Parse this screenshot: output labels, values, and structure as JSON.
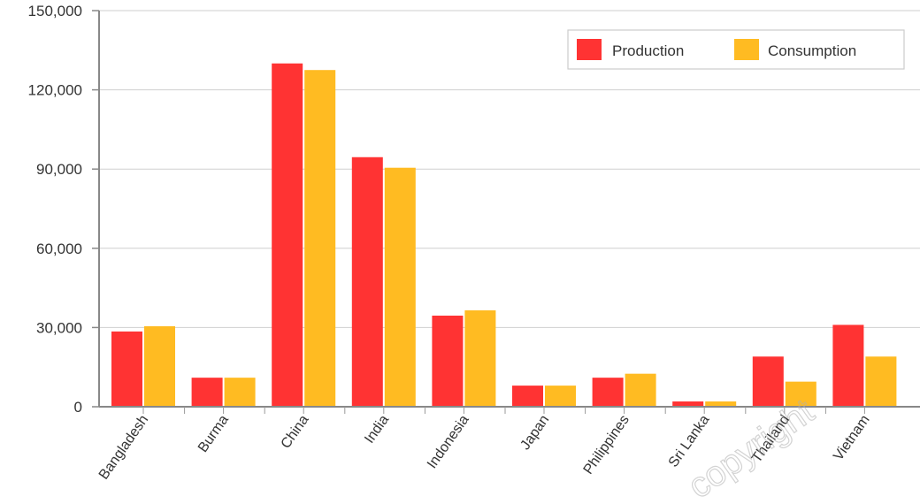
{
  "chart_data": {
    "type": "bar",
    "categories": [
      "Bangladesh",
      "Burma",
      "China",
      "India",
      "Indonesia",
      "Japan",
      "Philippines",
      "Sri Lanka",
      "Thailand",
      "Vietnam"
    ],
    "series": [
      {
        "name": "Production",
        "color": "#ff3333",
        "values": [
          28500,
          11000,
          130000,
          94500,
          34500,
          8000,
          11000,
          2000,
          19000,
          31000
        ]
      },
      {
        "name": "Consumption",
        "color": "#ffbb22",
        "values": [
          30500,
          11000,
          127500,
          90500,
          36500,
          8000,
          12500,
          2000,
          9500,
          19000
        ]
      }
    ],
    "title": "",
    "xlabel": "",
    "ylabel": "",
    "ylim": [
      0,
      150000
    ],
    "yticks": [
      "0",
      "30,000",
      "60,000",
      "90,000",
      "120,000",
      "150,000"
    ],
    "grid": true,
    "legend_position": "top-right"
  },
  "watermark": "copyright"
}
